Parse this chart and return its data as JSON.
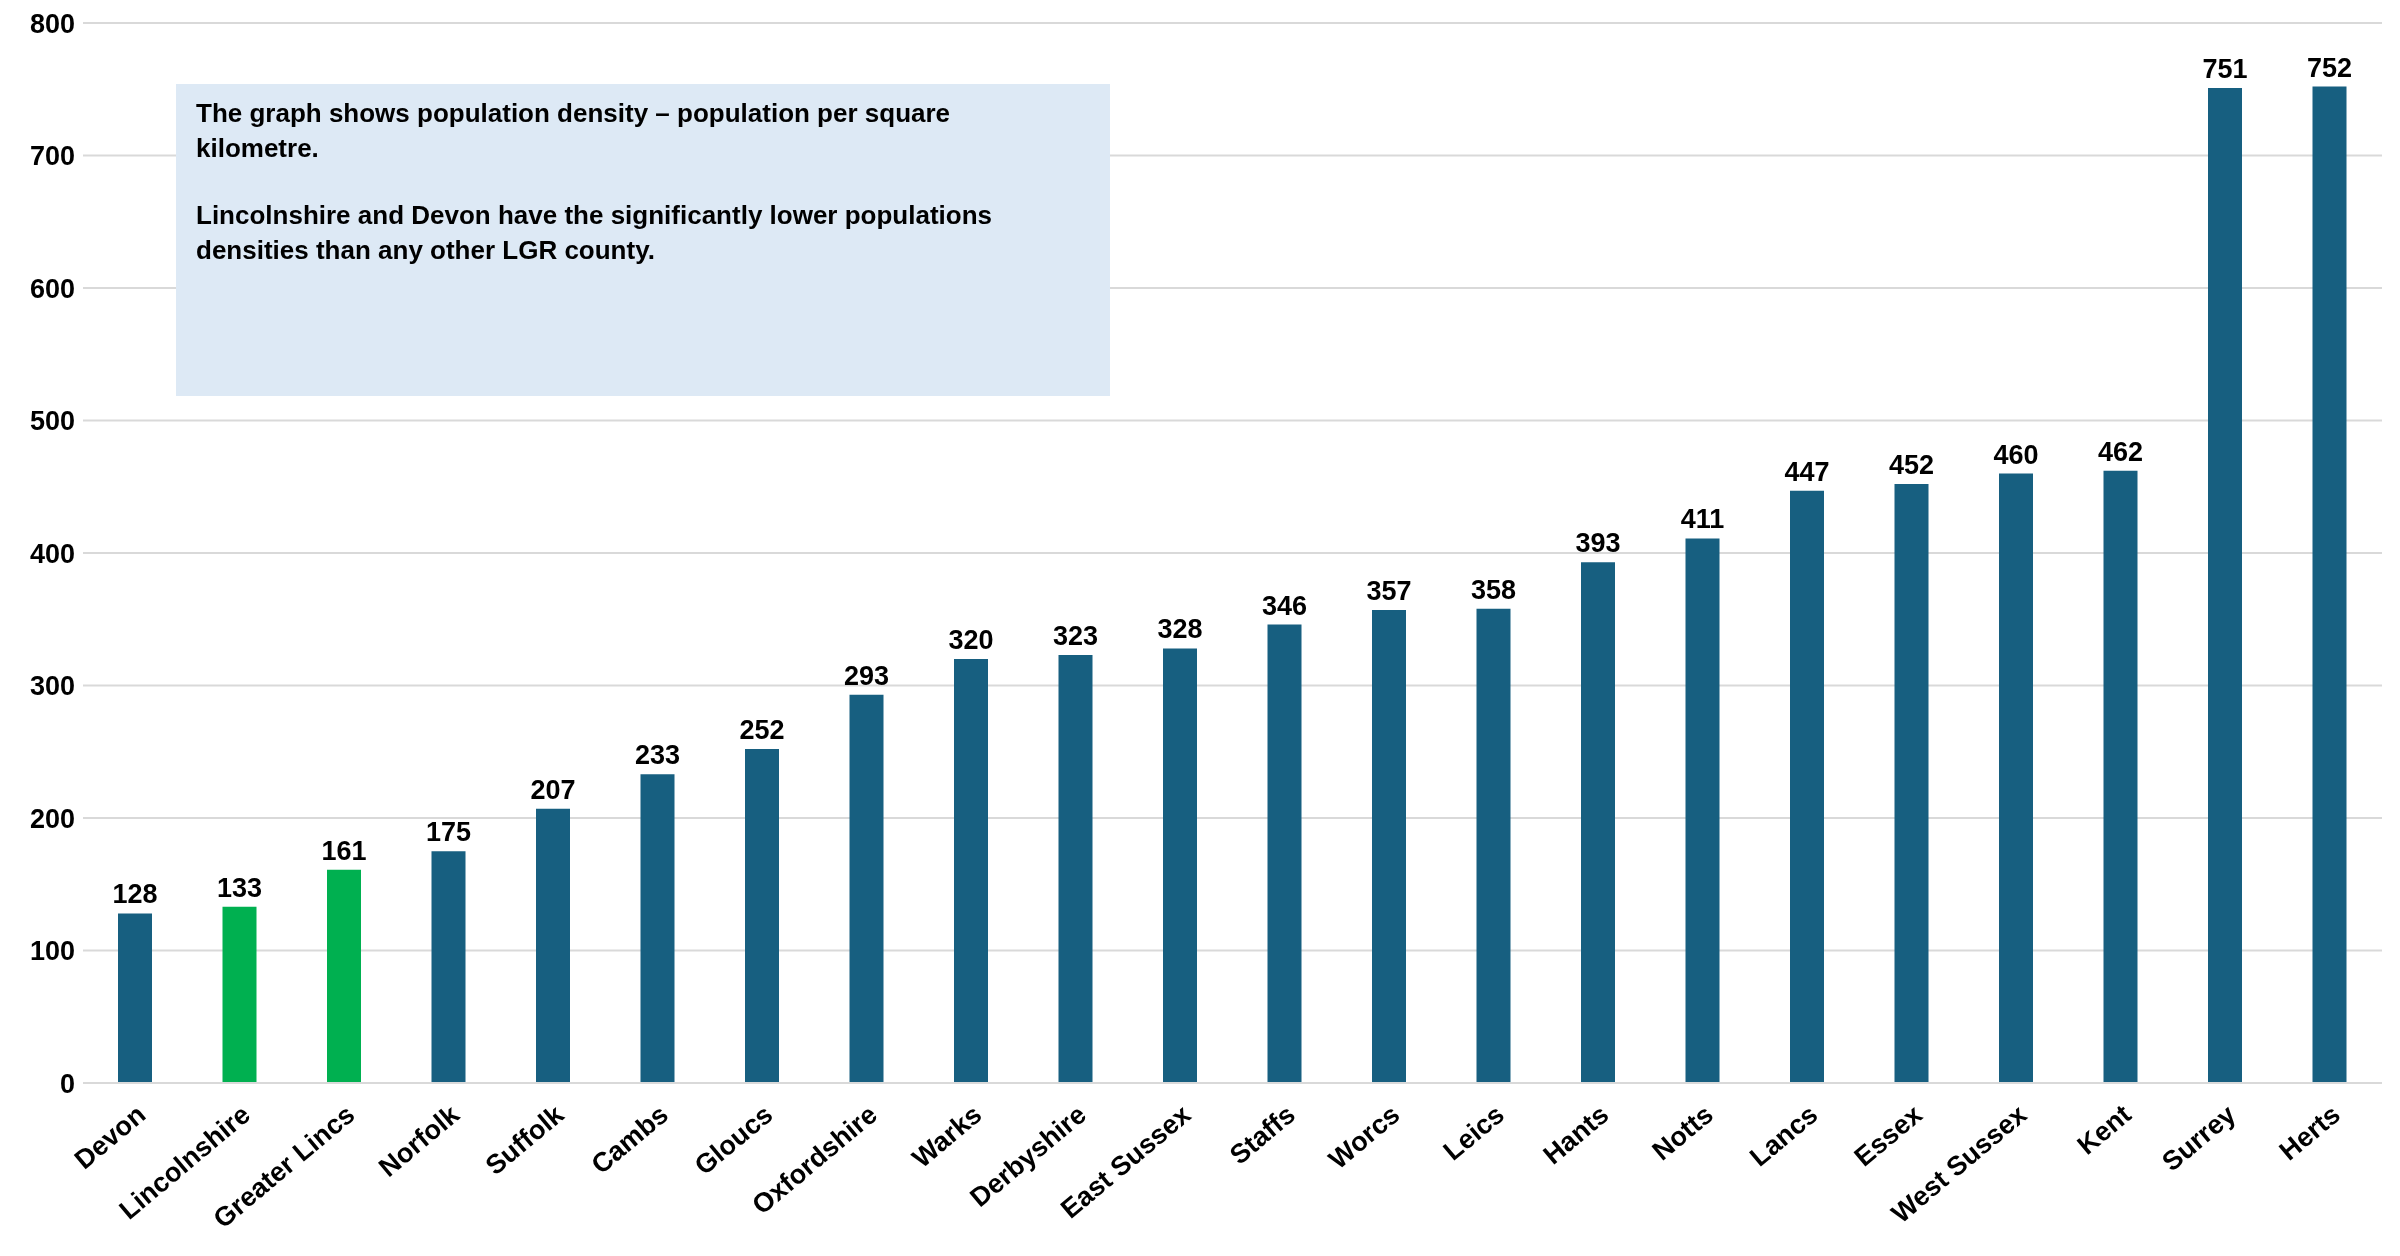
{
  "chart_data": {
    "type": "bar",
    "categories": [
      "Devon",
      "Lincolnshire",
      "Greater Lincs",
      "Norfolk",
      "Suffolk",
      "Cambs",
      "Gloucs",
      "Oxfordshire",
      "Warks",
      "Derbyshire",
      "East Sussex",
      "Staffs",
      "Worcs",
      "Leics",
      "Hants",
      "Notts",
      "Lancs",
      "Essex",
      "West Sussex",
      "Kent",
      "Surrey",
      "Herts"
    ],
    "values": [
      128,
      133,
      161,
      175,
      207,
      233,
      252,
      293,
      320,
      323,
      328,
      346,
      357,
      358,
      393,
      411,
      447,
      452,
      460,
      462,
      751,
      752
    ],
    "colors": [
      "#175f80",
      "#00b050",
      "#00b050",
      "#175f80",
      "#175f80",
      "#175f80",
      "#175f80",
      "#175f80",
      "#175f80",
      "#175f80",
      "#175f80",
      "#175f80",
      "#175f80",
      "#175f80",
      "#175f80",
      "#175f80",
      "#175f80",
      "#175f80",
      "#175f80",
      "#175f80",
      "#175f80",
      "#175f80"
    ],
    "ylim": [
      0,
      800
    ],
    "yticks": [
      0,
      100,
      200,
      300,
      400,
      500,
      600,
      700,
      800
    ],
    "grid": "y",
    "data_labels": true,
    "annotations": [
      "The graph shows population density – population per square kilometre.",
      "Lincolnshire and Devon have the significantly lower populations densities than any other LGR county."
    ]
  }
}
